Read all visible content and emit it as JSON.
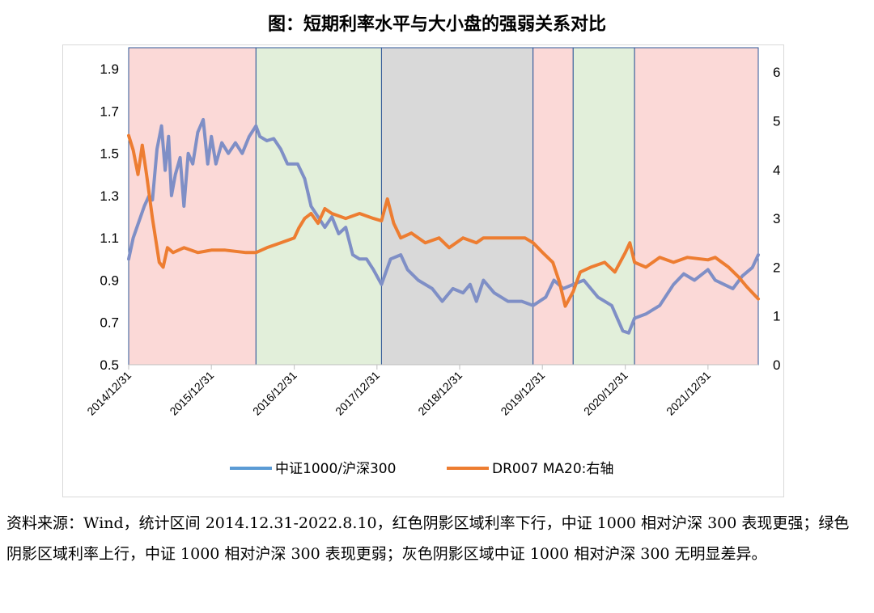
{
  "title": "图：短期利率水平与大小盘的强弱关系对比",
  "caption": "资料来源：Wind，统计区间 2014.12.31-2022.8.10，红色阴影区域利率下行，中证 1000 相对沪深 300 表现更强；绿色阴影区域利率上行，中证 1000 相对沪深 300 表现更弱；灰色阴影区域中证 1000 相对沪深 300 无明显差异。",
  "colors": {
    "series1": "#5b9bd5",
    "series1_mixed": "#7f8fc6",
    "series2": "#ed7d31",
    "shade_red": "#fbd9d7",
    "shade_green": "#e2efda",
    "shade_gray": "#d9d9d9",
    "shade_border": "#2e5597"
  },
  "chart_data": {
    "type": "line",
    "x_start": "2014-12-31",
    "x_end": "2022-08-10",
    "x_tick_labels": [
      "2014/12/31",
      "2015/12/31",
      "2016/12/31",
      "2017/12/31",
      "2018/12/31",
      "2019/12/31",
      "2020/12/31",
      "2021/12/31"
    ],
    "y_left": {
      "min": 0.5,
      "max": 2.0,
      "ticks": [
        "0.5",
        "0.7",
        "0.9",
        "1.1",
        "1.3",
        "1.5",
        "1.7",
        "1.9"
      ]
    },
    "y_right": {
      "min": 0,
      "max": 6.5,
      "ticks": [
        "0",
        "1",
        "2",
        "3",
        "4",
        "5",
        "6"
      ]
    },
    "shaded_regions": [
      {
        "start": "2014-12-31",
        "end": "2016-07-15",
        "type": "red"
      },
      {
        "start": "2016-07-15",
        "end": "2018-01-20",
        "type": "green"
      },
      {
        "start": "2018-01-20",
        "end": "2019-11-20",
        "type": "gray"
      },
      {
        "start": "2019-11-20",
        "end": "2020-05-15",
        "type": "red"
      },
      {
        "start": "2020-05-15",
        "end": "2021-02-10",
        "type": "green"
      },
      {
        "start": "2021-02-10",
        "end": "2022-08-10",
        "type": "red"
      }
    ],
    "series": [
      {
        "name": "中证1000/沪深300",
        "axis": "left",
        "points": [
          [
            "2014-12-31",
            1.0
          ],
          [
            "2015-01-20",
            1.1
          ],
          [
            "2015-02-15",
            1.18
          ],
          [
            "2015-03-10",
            1.25
          ],
          [
            "2015-03-31",
            1.3
          ],
          [
            "2015-04-15",
            1.28
          ],
          [
            "2015-05-05",
            1.52
          ],
          [
            "2015-05-25",
            1.63
          ],
          [
            "2015-06-10",
            1.42
          ],
          [
            "2015-06-25",
            1.58
          ],
          [
            "2015-07-08",
            1.3
          ],
          [
            "2015-07-25",
            1.4
          ],
          [
            "2015-08-15",
            1.48
          ],
          [
            "2015-09-01",
            1.25
          ],
          [
            "2015-09-20",
            1.5
          ],
          [
            "2015-10-10",
            1.45
          ],
          [
            "2015-11-01",
            1.6
          ],
          [
            "2015-11-25",
            1.66
          ],
          [
            "2015-12-15",
            1.45
          ],
          [
            "2015-12-31",
            1.58
          ],
          [
            "2016-01-20",
            1.45
          ],
          [
            "2016-02-15",
            1.55
          ],
          [
            "2016-03-15",
            1.5
          ],
          [
            "2016-04-15",
            1.55
          ],
          [
            "2016-05-15",
            1.5
          ],
          [
            "2016-06-15",
            1.58
          ],
          [
            "2016-07-15",
            1.63
          ],
          [
            "2016-08-01",
            1.58
          ],
          [
            "2016-09-01",
            1.56
          ],
          [
            "2016-10-01",
            1.57
          ],
          [
            "2016-11-01",
            1.52
          ],
          [
            "2016-12-01",
            1.45
          ],
          [
            "2017-01-15",
            1.45
          ],
          [
            "2017-02-15",
            1.38
          ],
          [
            "2017-03-15",
            1.25
          ],
          [
            "2017-04-15",
            1.2
          ],
          [
            "2017-05-15",
            1.15
          ],
          [
            "2017-06-15",
            1.2
          ],
          [
            "2017-07-15",
            1.12
          ],
          [
            "2017-08-15",
            1.15
          ],
          [
            "2017-09-15",
            1.02
          ],
          [
            "2017-10-15",
            1.0
          ],
          [
            "2017-11-15",
            1.0
          ],
          [
            "2017-12-15",
            0.95
          ],
          [
            "2018-01-20",
            0.88
          ],
          [
            "2018-03-01",
            1.0
          ],
          [
            "2018-04-15",
            1.02
          ],
          [
            "2018-05-15",
            0.95
          ],
          [
            "2018-07-01",
            0.9
          ],
          [
            "2018-09-01",
            0.86
          ],
          [
            "2018-10-15",
            0.8
          ],
          [
            "2018-12-01",
            0.86
          ],
          [
            "2019-01-15",
            0.84
          ],
          [
            "2019-02-15",
            0.88
          ],
          [
            "2019-03-15",
            0.8
          ],
          [
            "2019-04-15",
            0.9
          ],
          [
            "2019-06-01",
            0.84
          ],
          [
            "2019-08-01",
            0.8
          ],
          [
            "2019-10-01",
            0.8
          ],
          [
            "2019-11-20",
            0.78
          ],
          [
            "2020-01-15",
            0.82
          ],
          [
            "2020-02-20",
            0.9
          ],
          [
            "2020-04-01",
            0.86
          ],
          [
            "2020-05-15",
            0.88
          ],
          [
            "2020-07-01",
            0.9
          ],
          [
            "2020-09-01",
            0.82
          ],
          [
            "2020-11-01",
            0.78
          ],
          [
            "2020-12-20",
            0.66
          ],
          [
            "2021-01-15",
            0.65
          ],
          [
            "2021-02-10",
            0.72
          ],
          [
            "2021-04-01",
            0.74
          ],
          [
            "2021-06-01",
            0.78
          ],
          [
            "2021-08-01",
            0.88
          ],
          [
            "2021-09-15",
            0.93
          ],
          [
            "2021-11-01",
            0.9
          ],
          [
            "2021-12-31",
            0.95
          ],
          [
            "2022-02-01",
            0.9
          ],
          [
            "2022-04-20",
            0.86
          ],
          [
            "2022-06-01",
            0.92
          ],
          [
            "2022-07-15",
            0.96
          ],
          [
            "2022-08-10",
            1.02
          ]
        ]
      },
      {
        "name": "DR007 MA20:右轴",
        "axis": "right",
        "points": [
          [
            "2014-12-31",
            4.7
          ],
          [
            "2015-01-20",
            4.4
          ],
          [
            "2015-02-10",
            3.9
          ],
          [
            "2015-03-01",
            4.5
          ],
          [
            "2015-03-20",
            3.9
          ],
          [
            "2015-04-15",
            3.0
          ],
          [
            "2015-05-15",
            2.1
          ],
          [
            "2015-06-01",
            2.0
          ],
          [
            "2015-06-20",
            2.4
          ],
          [
            "2015-07-15",
            2.3
          ],
          [
            "2015-09-01",
            2.4
          ],
          [
            "2015-11-01",
            2.3
          ],
          [
            "2015-12-31",
            2.35
          ],
          [
            "2016-03-01",
            2.35
          ],
          [
            "2016-06-01",
            2.3
          ],
          [
            "2016-07-15",
            2.3
          ],
          [
            "2016-09-01",
            2.4
          ],
          [
            "2016-11-01",
            2.5
          ],
          [
            "2016-12-31",
            2.6
          ],
          [
            "2017-01-20",
            2.8
          ],
          [
            "2017-02-15",
            3.0
          ],
          [
            "2017-03-15",
            3.1
          ],
          [
            "2017-04-15",
            2.9
          ],
          [
            "2017-05-15",
            3.2
          ],
          [
            "2017-06-15",
            3.1
          ],
          [
            "2017-08-15",
            3.0
          ],
          [
            "2017-10-15",
            3.1
          ],
          [
            "2017-12-15",
            3.0
          ],
          [
            "2018-01-20",
            2.95
          ],
          [
            "2018-02-15",
            3.4
          ],
          [
            "2018-03-15",
            2.9
          ],
          [
            "2018-04-15",
            2.6
          ],
          [
            "2018-06-01",
            2.7
          ],
          [
            "2018-08-01",
            2.5
          ],
          [
            "2018-10-01",
            2.6
          ],
          [
            "2018-11-15",
            2.4
          ],
          [
            "2019-01-15",
            2.6
          ],
          [
            "2019-03-15",
            2.5
          ],
          [
            "2019-04-15",
            2.6
          ],
          [
            "2019-06-01",
            2.6
          ],
          [
            "2019-08-01",
            2.6
          ],
          [
            "2019-10-15",
            2.6
          ],
          [
            "2019-11-20",
            2.5
          ],
          [
            "2020-01-01",
            2.3
          ],
          [
            "2020-02-15",
            2.1
          ],
          [
            "2020-03-15",
            1.7
          ],
          [
            "2020-04-10",
            1.2
          ],
          [
            "2020-05-15",
            1.5
          ],
          [
            "2020-06-15",
            1.9
          ],
          [
            "2020-08-01",
            2.0
          ],
          [
            "2020-10-01",
            2.1
          ],
          [
            "2020-11-15",
            1.9
          ],
          [
            "2020-12-31",
            2.3
          ],
          [
            "2021-01-20",
            2.5
          ],
          [
            "2021-02-10",
            2.1
          ],
          [
            "2021-04-01",
            2.0
          ],
          [
            "2021-06-01",
            2.2
          ],
          [
            "2021-08-01",
            2.1
          ],
          [
            "2021-10-01",
            2.2
          ],
          [
            "2021-12-31",
            2.15
          ],
          [
            "2022-02-01",
            2.2
          ],
          [
            "2022-04-01",
            2.0
          ],
          [
            "2022-05-15",
            1.8
          ],
          [
            "2022-06-20",
            1.6
          ],
          [
            "2022-08-10",
            1.35
          ]
        ]
      }
    ],
    "legend_position": "bottom"
  }
}
